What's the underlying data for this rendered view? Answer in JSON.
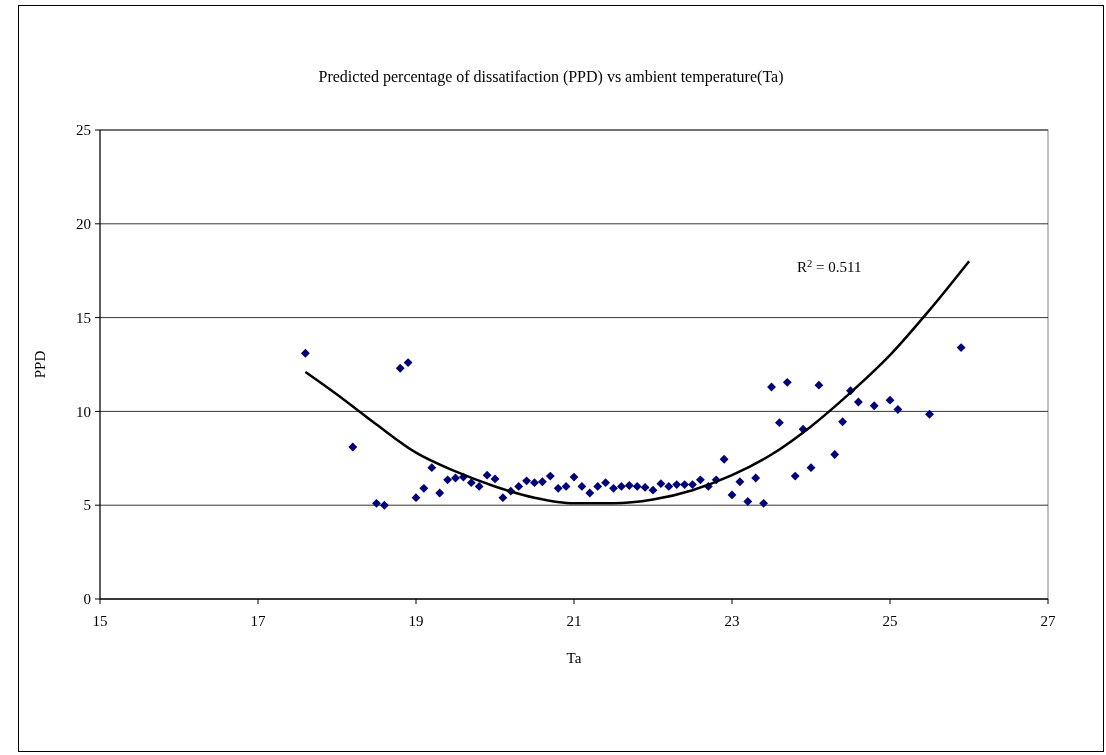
{
  "chart_data": {
    "type": "scatter",
    "title": "Predicted percentage of dissatifaction (PPD) vs ambient temperature(Ta)",
    "xlabel": "Ta",
    "ylabel": "PPD",
    "xlim": [
      15,
      27
    ],
    "xticks": [
      15,
      17,
      19,
      21,
      23,
      25,
      27
    ],
    "ylim": [
      0,
      25
    ],
    "yticks": [
      0,
      5,
      10,
      15,
      20,
      25
    ],
    "grid": "y",
    "marker": "diamond",
    "annotations": [
      "R$^{2}$ = 0.511"
    ],
    "series": [
      {
        "color": "#000080",
        "x": [
          17.6,
          18.2,
          18.5,
          18.6,
          18.8,
          18.9,
          19.0,
          19.1,
          19.2,
          19.3,
          19.4,
          19.5,
          19.6,
          19.7,
          19.8,
          19.9,
          20.0,
          20.1,
          20.2,
          20.3,
          20.4,
          20.5,
          20.6,
          20.7,
          20.8,
          20.9,
          21.0,
          21.1,
          21.2,
          21.3,
          21.4,
          21.5,
          21.6,
          21.7,
          21.8,
          21.9,
          22.0,
          22.1,
          22.2,
          22.3,
          22.4,
          22.5,
          22.6,
          22.7,
          22.8,
          22.9,
          23.0,
          23.1,
          23.2,
          23.3,
          23.4,
          23.5,
          23.6,
          23.7,
          23.8,
          23.9,
          24.0,
          24.1,
          24.3,
          24.4,
          24.5,
          24.6,
          24.8,
          25.0,
          25.1,
          25.5,
          25.9
        ],
        "values": [
          13.1,
          8.1,
          5.1,
          5.0,
          12.3,
          12.6,
          5.4,
          5.9,
          7.0,
          5.65,
          6.35,
          6.45,
          6.5,
          6.2,
          6.0,
          6.6,
          6.4,
          5.4,
          5.75,
          6.0,
          6.3,
          6.2,
          6.25,
          6.55,
          5.9,
          6.0,
          6.5,
          6.0,
          5.65,
          6.0,
          6.2,
          5.9,
          6.0,
          6.05,
          6.0,
          5.95,
          5.8,
          6.15,
          6.0,
          6.1,
          6.1,
          6.1,
          6.35,
          6.0,
          6.35,
          7.45,
          5.55,
          6.25,
          5.2,
          6.45,
          5.1,
          11.3,
          9.4,
          11.55,
          6.55,
          9.05,
          7.0,
          11.4,
          7.7,
          9.45,
          11.1,
          10.5,
          10.3,
          10.6,
          10.1,
          9.85,
          13.4
        ]
      },
      {
        "type": "line",
        "color": "#000000",
        "marker": "none",
        "x": [
          17.6,
          18,
          18.5,
          19,
          19.5,
          20,
          20.5,
          21,
          21.5,
          22,
          22.5,
          23,
          23.5,
          24,
          24.5,
          25,
          25.5,
          26
        ],
        "values": [
          12.1,
          10.9,
          9.3,
          7.8,
          6.8,
          6.0,
          5.4,
          5.1,
          5.1,
          5.3,
          5.8,
          6.6,
          7.7,
          9.2,
          11.0,
          13.0,
          15.4,
          18.0
        ]
      }
    ]
  }
}
